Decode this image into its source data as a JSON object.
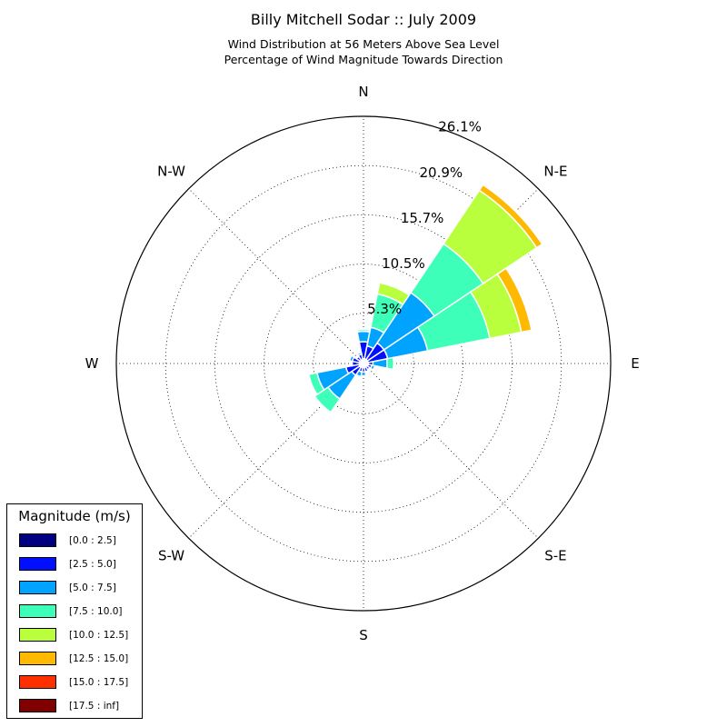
{
  "header": {
    "title": "Billy Mitchell Sodar :: July 2009",
    "subtitle_line1": "Wind Distribution at 56 Meters Above Sea Level",
    "subtitle_line2": "Percentage of Wind Magnitude Towards Direction"
  },
  "legend": {
    "title": "Magnitude (m/s)",
    "items": [
      {
        "label": "[0.0 : 2.5]",
        "color": "#000080"
      },
      {
        "label": "[2.5 : 5.0]",
        "color": "#0010ff"
      },
      {
        "label": "[5.0 : 7.5]",
        "color": "#00a4ff"
      },
      {
        "label": "[7.5 : 10.0]",
        "color": "#3dffb9"
      },
      {
        "label": "[10.0 : 12.5]",
        "color": "#b9ff3d"
      },
      {
        "label": "[12.5 : 15.0]",
        "color": "#ffb900"
      },
      {
        "label": "[15.0 : 17.5]",
        "color": "#ff3000"
      },
      {
        "label": "[17.5 : inf]",
        "color": "#800000"
      }
    ]
  },
  "chart_data": {
    "type": "wind-rose",
    "title": "Billy Mitchell Sodar :: July 2009",
    "subtitle": [
      "Wind Distribution at 56 Meters Above Sea Level",
      "Percentage of Wind Magnitude Towards Direction"
    ],
    "radial_ticks": [
      "5.3%",
      "10.5%",
      "15.7%",
      "20.9%",
      "26.1%"
    ],
    "radial_tick_values": [
      5.3,
      10.5,
      15.7,
      20.9,
      26.1
    ],
    "rmax": 26.1,
    "grid": true,
    "legend_position": "lower-left",
    "direction_labels": [
      "N",
      "N-E",
      "E",
      "S-E",
      "S",
      "S-W",
      "W",
      "N-W"
    ],
    "direction_angles": [
      0,
      45,
      90,
      135,
      180,
      225,
      270,
      315
    ],
    "bin_width_deg": 22.5,
    "bins": [
      "[0.0 : 2.5]",
      "[2.5 : 5.0]",
      "[5.0 : 7.5]",
      "[7.5 : 10.0]",
      "[10.0 : 12.5]",
      "[12.5 : 15.0]",
      "[15.0 : 17.5]",
      "[17.5 : inf]"
    ],
    "sectors": [
      {
        "direction": 0,
        "cumulative": [
          0.5,
          2.3,
          3.4,
          3.6,
          3.7,
          3.7,
          3.7,
          3.7
        ]
      },
      {
        "direction": 22.5,
        "cumulative": [
          0.5,
          1.9,
          3.9,
          7.5,
          8.7,
          8.7,
          8.7,
          8.7
        ]
      },
      {
        "direction": 45,
        "cumulative": [
          0.5,
          2.6,
          9.0,
          15.2,
          22.0,
          22.7,
          22.7,
          22.7
        ]
      },
      {
        "direction": 67.5,
        "cumulative": [
          0.5,
          2.6,
          6.9,
          13.6,
          17.0,
          18.1,
          18.1,
          18.1
        ]
      },
      {
        "direction": 90,
        "cumulative": [
          0.5,
          1.0,
          2.5,
          3.2,
          3.3,
          3.3,
          3.3,
          3.3
        ]
      },
      {
        "direction": 112.5,
        "cumulative": [
          0.5,
          0.9,
          1.2,
          1.2,
          1.2,
          1.2,
          1.2,
          1.2
        ]
      },
      {
        "direction": 135,
        "cumulative": [
          0.4,
          0.8,
          0.9,
          0.9,
          0.9,
          0.9,
          0.9,
          0.9
        ]
      },
      {
        "direction": 157.5,
        "cumulative": [
          0.4,
          0.9,
          1.0,
          1.0,
          1.0,
          1.0,
          1.0,
          1.0
        ]
      },
      {
        "direction": 180,
        "cumulative": [
          0.4,
          0.9,
          1.3,
          1.3,
          1.3,
          1.3,
          1.3,
          1.3
        ]
      },
      {
        "direction": 202.5,
        "cumulative": [
          0.4,
          0.9,
          1.4,
          1.4,
          1.4,
          1.4,
          1.4,
          1.4
        ]
      },
      {
        "direction": 225,
        "cumulative": [
          0.5,
          1.5,
          4.5,
          6.2,
          6.2,
          6.2,
          6.2,
          6.2
        ]
      },
      {
        "direction": 247.5,
        "cumulative": [
          0.5,
          1.9,
          5.0,
          5.9,
          6.0,
          6.0,
          6.0,
          6.0
        ]
      },
      {
        "direction": 270,
        "cumulative": [
          0.4,
          1.2,
          1.3,
          1.3,
          1.3,
          1.3,
          1.3,
          1.3
        ]
      },
      {
        "direction": 292.5,
        "cumulative": [
          0.4,
          1.2,
          1.5,
          1.5,
          1.5,
          1.5,
          1.5,
          1.5
        ]
      },
      {
        "direction": 315,
        "cumulative": [
          0.4,
          0.9,
          1.0,
          1.0,
          1.0,
          1.0,
          1.0,
          1.0
        ]
      },
      {
        "direction": 337.5,
        "cumulative": [
          0.4,
          1.0,
          1.2,
          1.2,
          1.2,
          1.2,
          1.2,
          1.2
        ]
      }
    ]
  }
}
